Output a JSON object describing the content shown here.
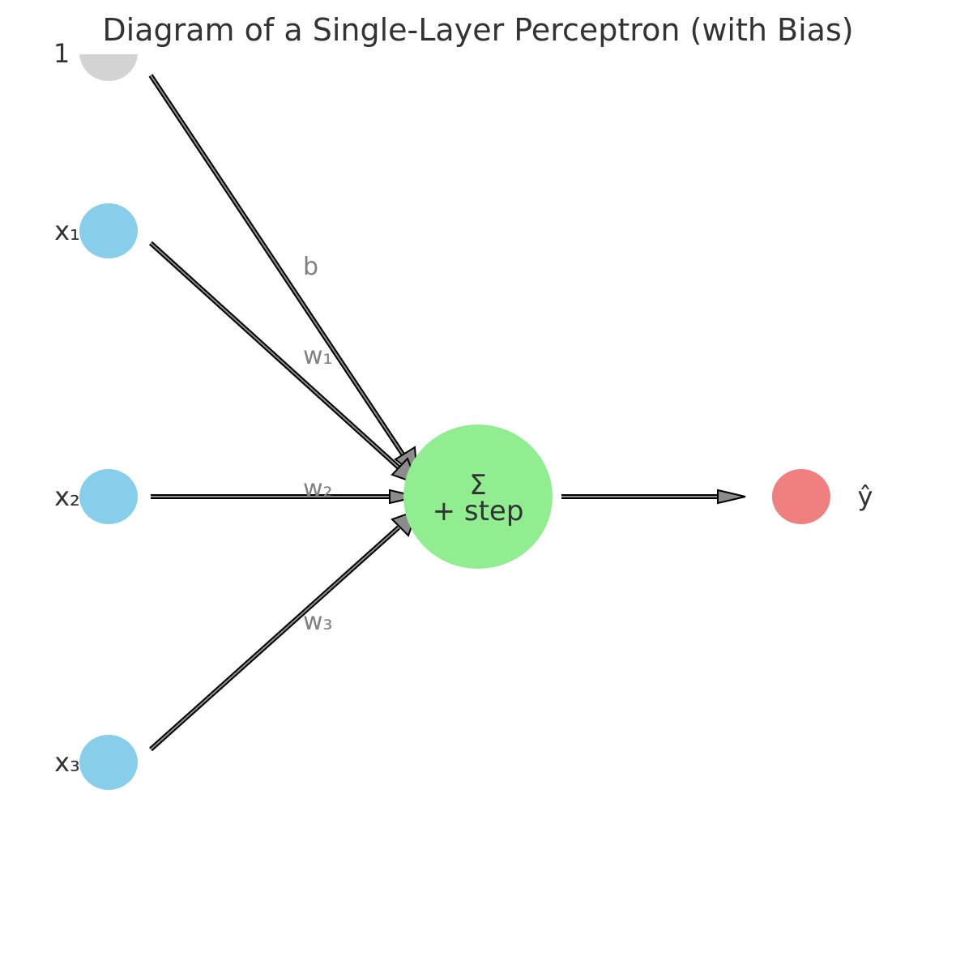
{
  "title": "Diagram of a Single-Layer Perceptron (with Bias)",
  "inputs": [
    {
      "label": "1",
      "role": "bias",
      "color": "#d3d3d3"
    },
    {
      "label": "x₁",
      "role": "input",
      "color": "#87ceeb"
    },
    {
      "label": "x₂",
      "role": "input",
      "color": "#87ceeb"
    },
    {
      "label": "x₃",
      "role": "input",
      "color": "#87ceeb"
    }
  ],
  "weights": [
    "b",
    "w₁",
    "w₂",
    "w₃"
  ],
  "summation": {
    "symbol": "Σ",
    "activation": "+ step",
    "color": "#90ee90"
  },
  "output": {
    "label": "ŷ",
    "color": "#f08080"
  }
}
